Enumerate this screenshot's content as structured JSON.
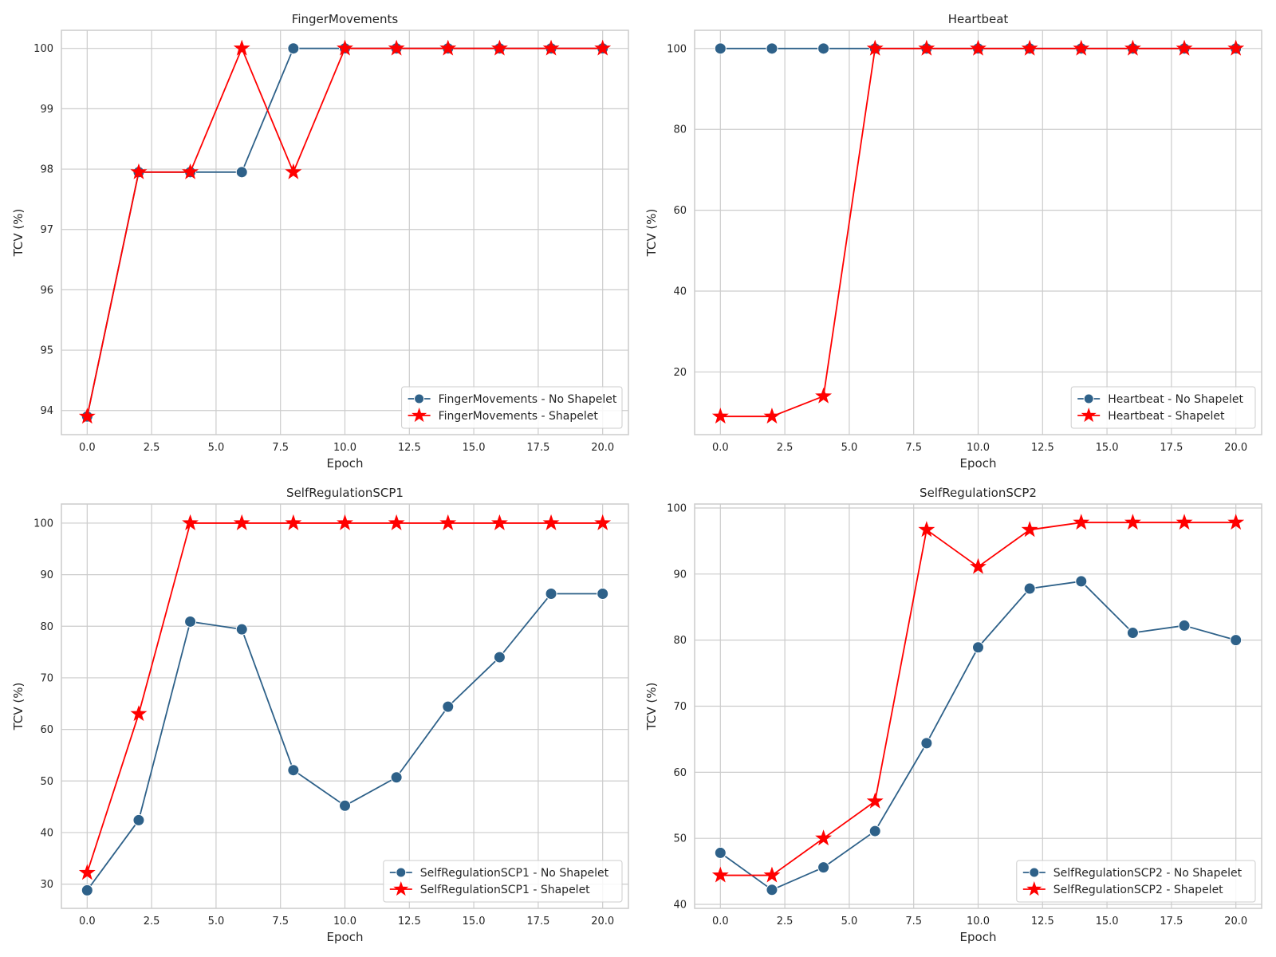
{
  "colors": {
    "no_shapelet": "#2e6189",
    "shapelet": "#ff0000",
    "grid": "#cccccc",
    "frame": "#cccccc"
  },
  "chart_data": [
    {
      "type": "line",
      "title": "FingerMovements",
      "xlabel": "Epoch",
      "ylabel": "TCV (%)",
      "x": [
        0,
        2,
        4,
        6,
        8,
        10,
        12,
        14,
        16,
        18,
        20
      ],
      "xlim": [
        -1,
        21
      ],
      "ylim": [
        93.6,
        100.3
      ],
      "xticks": [
        0,
        2.5,
        5,
        7.5,
        10,
        12.5,
        15,
        17.5,
        20
      ],
      "xtick_labels": [
        "0.0",
        "2.5",
        "5.0",
        "7.5",
        "10.0",
        "12.5",
        "15.0",
        "17.5",
        "20.0"
      ],
      "yticks": [
        94,
        95,
        96,
        97,
        98,
        99,
        100
      ],
      "ytick_labels": [
        "94",
        "95",
        "96",
        "97",
        "98",
        "99",
        "100"
      ],
      "legend_position": "lower-right",
      "series": [
        {
          "name": "FingerMovements - No Shapelet",
          "marker": "circle",
          "values": [
            93.9,
            97.95,
            97.95,
            97.95,
            100,
            100,
            100,
            100,
            100,
            100,
            100
          ]
        },
        {
          "name": "FingerMovements - Shapelet",
          "marker": "star",
          "values": [
            93.9,
            97.95,
            97.95,
            100,
            97.95,
            100,
            100,
            100,
            100,
            100,
            100
          ]
        }
      ]
    },
    {
      "type": "line",
      "title": "Heartbeat",
      "xlabel": "Epoch",
      "ylabel": "TCV (%)",
      "x": [
        0,
        2,
        4,
        6,
        8,
        10,
        12,
        14,
        16,
        18,
        20
      ],
      "xlim": [
        -1,
        21
      ],
      "ylim": [
        4.5,
        104.5
      ],
      "xticks": [
        0,
        2.5,
        5,
        7.5,
        10,
        12.5,
        15,
        17.5,
        20
      ],
      "xtick_labels": [
        "0.0",
        "2.5",
        "5.0",
        "7.5",
        "10.0",
        "12.5",
        "15.0",
        "17.5",
        "20.0"
      ],
      "yticks": [
        20,
        40,
        60,
        80,
        100
      ],
      "ytick_labels": [
        "20",
        "40",
        "60",
        "80",
        "100"
      ],
      "legend_position": "lower-right",
      "series": [
        {
          "name": "Heartbeat - No Shapelet",
          "marker": "circle",
          "values": [
            100,
            100,
            100,
            100,
            100,
            100,
            100,
            100,
            100,
            100,
            100
          ]
        },
        {
          "name": "Heartbeat - Shapelet",
          "marker": "star",
          "values": [
            9,
            9,
            14,
            100,
            100,
            100,
            100,
            100,
            100,
            100,
            100
          ]
        }
      ]
    },
    {
      "type": "line",
      "title": "SelfRegulationSCP1",
      "xlabel": "Epoch",
      "ylabel": "TCV (%)",
      "x": [
        0,
        2,
        4,
        6,
        8,
        10,
        12,
        14,
        16,
        18,
        20
      ],
      "xlim": [
        -1,
        21
      ],
      "ylim": [
        25.3,
        103.7
      ],
      "xticks": [
        0,
        2.5,
        5,
        7.5,
        10,
        12.5,
        15,
        17.5,
        20
      ],
      "xtick_labels": [
        "0.0",
        "2.5",
        "5.0",
        "7.5",
        "10.0",
        "12.5",
        "15.0",
        "17.5",
        "20.0"
      ],
      "yticks": [
        30,
        40,
        50,
        60,
        70,
        80,
        90,
        100
      ],
      "ytick_labels": [
        "30",
        "40",
        "50",
        "60",
        "70",
        "80",
        "90",
        "100"
      ],
      "legend_position": "lower-right",
      "series": [
        {
          "name": "SelfRegulationSCP1 - No Shapelet",
          "marker": "circle",
          "values": [
            28.8,
            42.4,
            80.9,
            79.4,
            52.1,
            45.2,
            50.7,
            64.4,
            74,
            86.3,
            86.3
          ]
        },
        {
          "name": "SelfRegulationSCP1 - Shapelet",
          "marker": "star",
          "values": [
            32.2,
            63,
            100,
            100,
            100,
            100,
            100,
            100,
            100,
            100,
            100
          ]
        }
      ]
    },
    {
      "type": "line",
      "title": "SelfRegulationSCP2",
      "xlabel": "Epoch",
      "ylabel": "TCV (%)",
      "x": [
        0,
        2,
        4,
        6,
        8,
        10,
        12,
        14,
        16,
        18,
        20
      ],
      "xlim": [
        -1,
        21
      ],
      "ylim": [
        39.4,
        100.6
      ],
      "xticks": [
        0,
        2.5,
        5,
        7.5,
        10,
        12.5,
        15,
        17.5,
        20
      ],
      "xtick_labels": [
        "0.0",
        "2.5",
        "5.0",
        "7.5",
        "10.0",
        "12.5",
        "15.0",
        "17.5",
        "20.0"
      ],
      "yticks": [
        40,
        50,
        60,
        70,
        80,
        90,
        100
      ],
      "ytick_labels": [
        "40",
        "50",
        "60",
        "70",
        "80",
        "90",
        "100"
      ],
      "legend_position": "lower-right",
      "series": [
        {
          "name": "SelfRegulationSCP2 - No Shapelet",
          "marker": "circle",
          "values": [
            47.8,
            42.2,
            45.6,
            51.1,
            64.4,
            78.9,
            87.8,
            88.9,
            81.1,
            82.2,
            80
          ]
        },
        {
          "name": "SelfRegulationSCP2 - Shapelet",
          "marker": "star",
          "values": [
            44.4,
            44.4,
            50,
            55.6,
            96.7,
            91.1,
            96.7,
            97.8,
            97.8,
            97.8,
            97.8
          ]
        }
      ]
    }
  ]
}
